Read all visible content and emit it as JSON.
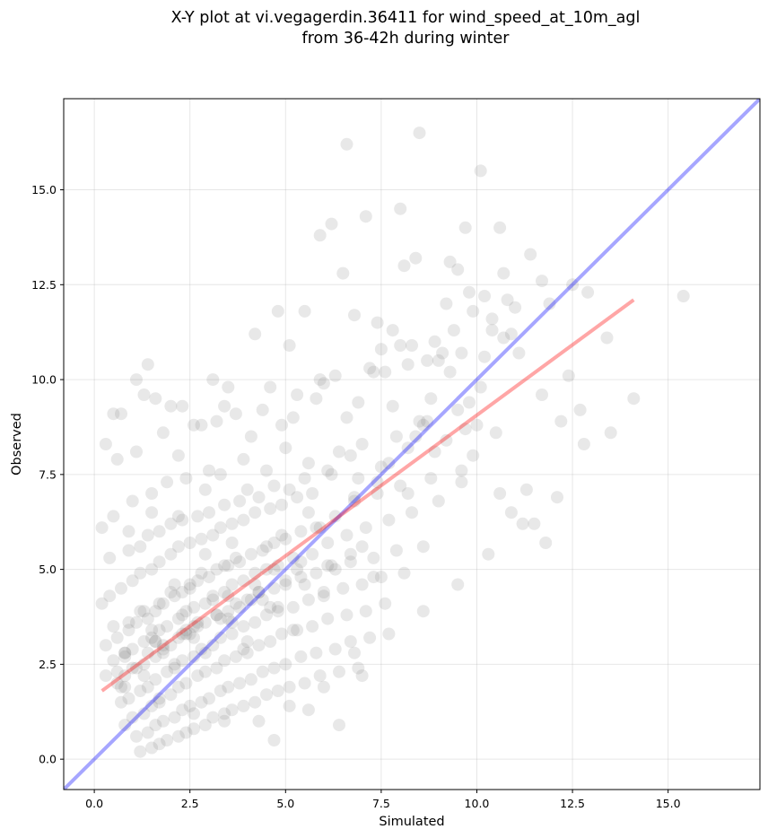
{
  "chart_data": {
    "type": "scatter",
    "title_lines": [
      "X-Y plot at vi.vegagerdin.36411 for wind_speed_at_10m_agl",
      "from 36-42h during winter"
    ],
    "xlabel": "Simulated",
    "ylabel": "Observed",
    "xlim": [
      -0.8,
      17.4
    ],
    "ylim": [
      -0.8,
      17.4
    ],
    "x_ticks": [
      0.0,
      2.5,
      5.0,
      7.5,
      10.0,
      12.5,
      15.0
    ],
    "y_ticks": [
      0.0,
      2.5,
      5.0,
      7.5,
      10.0,
      12.5,
      15.0
    ],
    "x_tick_labels": [
      "0.0",
      "2.5",
      "5.0",
      "7.5",
      "10.0",
      "12.5",
      "15.0"
    ],
    "y_tick_labels": [
      "0.0",
      "2.5",
      "5.0",
      "7.5",
      "10.0",
      "12.5",
      "15.0"
    ],
    "grid": true,
    "colors": {
      "points": "#808080",
      "identity_line": "#0000ff",
      "fit_line": "#ff0000"
    },
    "reference_lines": {
      "identity": {
        "x": [
          -0.8,
          17.4
        ],
        "y": [
          -0.8,
          17.4
        ]
      },
      "fit": {
        "x": [
          0.2,
          14.1
        ],
        "y": [
          1.8,
          12.1
        ]
      }
    },
    "points": {
      "x": [
        6.6,
        8.5,
        10.1,
        9.7,
        6.2,
        10.6,
        7.1,
        8.4,
        8.0,
        5.9,
        11.4,
        10.8,
        10.2,
        9.3,
        3.4,
        8.1,
        12.9,
        6.5,
        9.5,
        9.2,
        7.8,
        11.9,
        10.4,
        5.5,
        8.9,
        7.4,
        4.2,
        10.7,
        12.2,
        9.9,
        6.8,
        8.7,
        4.8,
        7.5,
        5.1,
        11.1,
        3.1,
        9.6,
        2.0,
        1.4,
        13.4,
        12.5,
        10.7,
        9.8,
        8.3,
        7.2,
        5.9,
        4.6,
        12.7,
        11.7,
        9.0,
        7.6,
        6.0,
        3.5,
        0.7,
        12.4,
        10.9,
        10.2,
        9.4,
        8.0,
        6.3,
        5.3,
        4.4,
        3.7,
        2.8,
        1.3,
        0.3,
        1.6,
        11.7,
        11.0,
        10.4,
        9.1,
        8.2,
        7.3,
        6.9,
        5.8,
        5.2,
        4.9,
        4.1,
        3.2,
        2.6,
        2.2,
        1.8,
        1.1,
        0.6,
        11.3,
        10.1,
        9.5,
        8.7,
        7.9,
        7.0,
        6.4,
        5.6,
        5.0,
        4.5,
        3.9,
        3.3,
        2.9,
        2.4,
        1.9,
        1.5,
        1.0,
        0.5,
        0.2,
        11.5,
        10.6,
        9.9,
        9.2,
        8.4,
        7.7,
        6.7,
        6.1,
        5.5,
        5.1,
        4.7,
        4.3,
        3.8,
        3.4,
        3.0,
        2.7,
        2.3,
        2.0,
        1.7,
        1.4,
        1.2,
        0.9,
        0.4,
        10.5,
        9.7,
        8.9,
        8.2,
        7.5,
        6.9,
        6.2,
        5.7,
        5.3,
        4.9,
        4.6,
        4.2,
        3.9,
        3.6,
        3.3,
        3.1,
        2.8,
        2.5,
        2.2,
        2.0,
        1.7,
        1.5,
        1.2,
        1.0,
        0.7,
        0.4,
        0.2,
        9.6,
        8.8,
        8.0,
        7.4,
        6.8,
        6.3,
        5.9,
        5.4,
        5.0,
        4.7,
        4.4,
        4.1,
        3.8,
        3.5,
        3.2,
        3.0,
        2.7,
        2.5,
        2.3,
        2.1,
        1.8,
        1.6,
        1.4,
        1.1,
        0.9,
        0.6,
        0.3,
        9.0,
        8.3,
        7.7,
        7.1,
        6.6,
        6.1,
        5.7,
        5.2,
        4.8,
        4.5,
        4.2,
        3.9,
        3.6,
        3.4,
        3.1,
        2.9,
        2.6,
        2.4,
        2.2,
        1.9,
        1.7,
        1.5,
        1.3,
        1.0,
        0.8,
        0.5,
        8.6,
        7.9,
        7.3,
        6.7,
        6.2,
        5.8,
        5.4,
        5.0,
        4.7,
        4.3,
        4.0,
        3.7,
        3.5,
        3.2,
        2.9,
        2.7,
        2.5,
        2.2,
        2.0,
        1.8,
        1.6,
        1.3,
        1.1,
        0.8,
        0.6,
        8.1,
        7.5,
        7.0,
        6.5,
        6.0,
        5.6,
        5.2,
        4.8,
        4.5,
        4.2,
        3.9,
        3.6,
        3.3,
        3.1,
        2.8,
        2.6,
        2.3,
        2.1,
        1.9,
        1.6,
        1.4,
        1.2,
        0.9,
        0.7,
        7.6,
        7.1,
        6.6,
        6.1,
        5.7,
        5.3,
        4.9,
        4.6,
        4.3,
        4.0,
        3.7,
        3.4,
        3.2,
        2.9,
        2.7,
        2.4,
        2.2,
        2.0,
        1.7,
        1.5,
        1.3,
        1.0,
        0.8,
        7.2,
        6.7,
        6.3,
        5.8,
        5.4,
        5.0,
        4.7,
        4.4,
        4.1,
        3.8,
        3.5,
        3.3,
        3.0,
        2.8,
        2.5,
        2.3,
        2.1,
        1.8,
        1.6,
        1.4,
        1.1,
        6.9,
        6.4,
        5.9,
        5.5,
        5.1,
        4.8,
        4.5,
        4.2,
        3.9,
        3.6,
        3.4,
        3.1,
        2.9,
        2.6,
        2.4,
        2.2,
        1.9,
        1.7,
        1.5,
        1.2,
        8.8,
        9.3,
        10.0,
        9.6,
        8.5,
        7.8,
        6.6,
        7.4,
        8.2,
        5.6,
        6.8,
        4.0,
        3.0,
        2.2,
        1.5,
        0.9,
        4.3,
        3.8,
        2.6,
        1.8,
        3.6,
        2.9,
        2.1,
        1.3,
        5.4,
        4.7,
        3.5,
        2.7,
        1.6,
        0.8,
        6.3,
        5.5,
        4.4,
        3.3,
        2.4,
        7.0,
        6.1,
        5.0,
        4.1,
        3.2,
        2.3,
        1.4,
        0.6,
        4.9,
        3.7,
        2.8,
        2.0,
        1.2,
        0.5,
        5.8,
        4.5,
        3.4,
        2.5,
        1.7,
        0.9,
        6.7,
        5.3,
        4.2,
        3.1,
        2.3,
        1.5,
        7.3,
        6.0,
        4.8,
        3.6,
        2.6,
        1.8,
        1.0,
        4.6,
        3.5,
        2.4,
        1.6,
        0.8,
        5.2,
        4.0,
        2.9,
        2.1,
        1.3,
        0.7,
        13.5,
        14.1,
        12.8,
        15.4,
        9.8,
        8.6,
        10.9,
        6.4,
        7.0,
        11.8,
        2.3,
        1.1,
        0.5,
        3.9,
        4.7,
        5.6,
        0.3,
        0.8,
        1.7,
        2.6,
        3.4,
        4.3,
        5.1,
        6.0,
        6.8,
        7.7,
        8.6,
        9.5,
        10.3,
        11.2,
        12.1
      ],
      "y": [
        16.2,
        16.5,
        15.5,
        14.0,
        14.1,
        14.0,
        14.3,
        13.2,
        14.5,
        13.8,
        13.3,
        12.1,
        12.2,
        13.1,
        9.3,
        13.0,
        12.3,
        12.8,
        12.9,
        12.0,
        11.3,
        12.0,
        11.6,
        11.8,
        11.0,
        11.5,
        11.2,
        11.1,
        8.9,
        11.8,
        11.7,
        10.5,
        11.8,
        10.8,
        10.9,
        10.7,
        10.0,
        10.7,
        9.3,
        10.4,
        11.1,
        12.5,
        12.8,
        12.3,
        10.9,
        10.3,
        10.0,
        9.8,
        9.2,
        9.6,
        10.5,
        10.2,
        9.9,
        9.8,
        9.1,
        10.1,
        11.2,
        10.6,
        11.3,
        10.9,
        10.1,
        9.6,
        9.2,
        9.1,
        8.8,
        9.6,
        8.3,
        9.5,
        12.6,
        11.9,
        11.3,
        10.7,
        10.4,
        10.2,
        9.4,
        9.5,
        9.0,
        8.8,
        8.5,
        8.9,
        8.8,
        8.0,
        8.6,
        8.1,
        7.9,
        7.1,
        9.8,
        9.2,
        8.9,
        8.5,
        8.3,
        8.1,
        7.8,
        8.2,
        7.6,
        7.9,
        7.5,
        7.1,
        7.4,
        7.3,
        7.0,
        6.8,
        6.4,
        6.1,
        6.2,
        7.0,
        8.0,
        8.4,
        8.5,
        7.8,
        8.0,
        7.6,
        7.4,
        7.1,
        7.2,
        6.9,
        6.8,
        6.7,
        6.5,
        6.4,
        6.3,
        6.2,
        6.0,
        5.9,
        5.6,
        5.5,
        5.3,
        8.6,
        8.7,
        8.1,
        8.2,
        7.7,
        7.4,
        7.5,
        7.0,
        6.9,
        6.7,
        6.6,
        6.5,
        6.3,
        6.2,
        6.1,
        5.9,
        5.8,
        5.7,
        5.6,
        5.4,
        5.2,
        5.0,
        4.9,
        4.7,
        4.5,
        4.3,
        4.1,
        7.6,
        7.4,
        7.2,
        7.0,
        6.8,
        6.4,
        6.1,
        6.0,
        5.8,
        5.7,
        5.5,
        5.4,
        5.2,
        5.1,
        5.0,
        4.8,
        4.7,
        4.5,
        4.4,
        4.3,
        4.1,
        3.9,
        3.7,
        3.6,
        3.4,
        3.2,
        3.0,
        6.8,
        6.5,
        6.3,
        6.1,
        5.9,
        5.7,
        5.4,
        5.3,
        5.1,
        5.0,
        4.9,
        4.7,
        4.6,
        4.4,
        4.3,
        4.1,
        4.0,
        3.9,
        3.7,
        3.5,
        3.4,
        3.2,
        3.1,
        2.9,
        2.8,
        2.6,
        5.6,
        5.5,
        5.3,
        5.2,
        5.1,
        4.9,
        4.8,
        4.6,
        4.5,
        4.4,
        4.2,
        4.1,
        3.9,
        3.8,
        3.6,
        3.5,
        3.3,
        3.2,
        3.0,
        2.9,
        2.7,
        2.5,
        2.4,
        2.2,
        2.0,
        4.9,
        4.8,
        4.6,
        4.5,
        4.3,
        4.2,
        4.0,
        3.9,
        3.8,
        3.6,
        3.5,
        3.3,
        3.2,
        3.0,
        2.9,
        2.7,
        2.6,
        2.4,
        2.3,
        2.1,
        1.9,
        1.8,
        1.6,
        1.5,
        4.1,
        3.9,
        3.8,
        3.7,
        3.5,
        3.4,
        3.3,
        3.1,
        3.0,
        2.8,
        2.7,
        2.6,
        2.4,
        2.3,
        2.2,
        2.0,
        1.9,
        1.7,
        1.6,
        1.4,
        1.2,
        1.1,
        0.9,
        3.2,
        3.1,
        2.9,
        2.8,
        2.7,
        2.5,
        2.4,
        2.3,
        2.1,
        2.0,
        1.9,
        1.8,
        1.6,
        1.5,
        1.4,
        1.3,
        1.1,
        1.0,
        0.9,
        0.7,
        0.6,
        2.4,
        2.3,
        2.2,
        2.0,
        1.9,
        1.8,
        1.7,
        1.5,
        1.4,
        1.3,
        1.2,
        1.1,
        0.9,
        0.8,
        0.7,
        0.6,
        0.5,
        0.4,
        0.3,
        0.2,
        9.5,
        10.2,
        8.8,
        7.3,
        8.9,
        9.3,
        9.0,
        7.3,
        7.0,
        6.5,
        6.9,
        7.1,
        7.6,
        6.4,
        6.5,
        6.0,
        4.4,
        4.0,
        3.5,
        3.0,
        5.7,
        5.4,
        4.6,
        3.9,
        5.2,
        5.0,
        4.3,
        3.6,
        3.1,
        2.7,
        5.0,
        4.6,
        4.2,
        3.7,
        3.3,
        5.6,
        5.1,
        4.7,
        4.2,
        3.8,
        3.3,
        2.8,
        2.3,
        5.9,
        5.3,
        4.9,
        4.4,
        3.9,
        3.5,
        6.1,
        5.6,
        5.1,
        4.6,
        4.1,
        3.6,
        5.4,
        5.0,
        4.6,
        4.2,
        3.8,
        3.4,
        4.8,
        4.4,
        4.0,
        3.6,
        3.2,
        2.8,
        2.4,
        4.0,
        3.7,
        3.4,
        3.1,
        2.8,
        3.4,
        3.1,
        2.8,
        2.5,
        2.2,
        1.9,
        8.6,
        9.5,
        8.3,
        12.2,
        9.4,
        8.8,
        6.5,
        0.9,
        2.2,
        5.7,
        9.3,
        10.0,
        9.1,
        2.9,
        0.5,
        1.3,
        2.2,
        1.9,
        1.5,
        1.2,
        1.0,
        1.0,
        1.4,
        1.9,
        2.8,
        3.3,
        3.9,
        4.6,
        5.4,
        6.2,
        6.9
      ]
    }
  }
}
